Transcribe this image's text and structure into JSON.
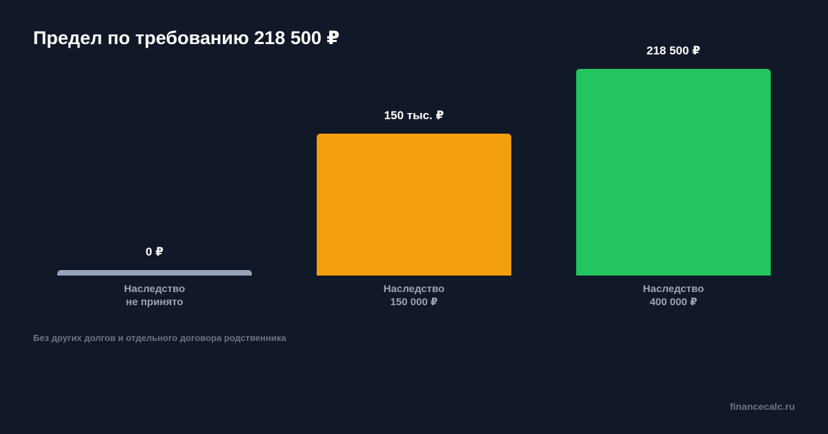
{
  "chart_data": {
    "type": "bar",
    "title": "Предел по требованию 218 500 ₽",
    "categories": [
      "Наследство\nне принято",
      "Наследство\n150 000 ₽",
      "Наследство\n400 000 ₽"
    ],
    "values": [
      0,
      150000,
      218500
    ],
    "value_labels": [
      "0 ₽",
      "150 тыс. ₽",
      "218 500 ₽"
    ],
    "colors": [
      "#94a3b8",
      "#f59e0b",
      "#22c55e"
    ],
    "note": "Без других долгов и отдельного договора родственника",
    "source": "financecalc.ru"
  }
}
